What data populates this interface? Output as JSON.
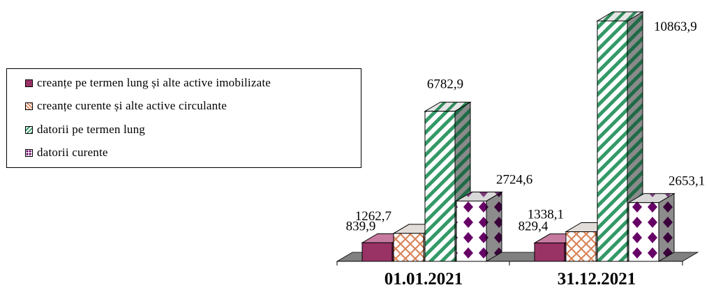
{
  "chart_data": {
    "type": "bar",
    "categories": [
      "01.01.2021",
      "31.12.2021"
    ],
    "series": [
      {
        "name": "creanțe pe termen lung și alte active imobilizate",
        "values": [
          839.9,
          829.4
        ],
        "labels": [
          "839,9",
          "829,4"
        ],
        "color": "#993366",
        "pattern": "solid"
      },
      {
        "name": "creanțe curente și alte active circulante",
        "values": [
          1262.7,
          1338.1
        ],
        "labels": [
          "1262,7",
          "1338,1"
        ],
        "color": "#d9855a",
        "pattern": "crosshatch"
      },
      {
        "name": "datorii pe termen lung",
        "values": [
          6782.9,
          10863.9
        ],
        "labels": [
          "6782,9",
          "10863,9"
        ],
        "color": "#339966",
        "pattern": "diagonal"
      },
      {
        "name": "datorii curente",
        "values": [
          2724.6,
          2653.1
        ],
        "labels": [
          "2724,6",
          "2653,1"
        ],
        "color": "#660066",
        "pattern": "diamond"
      }
    ],
    "legend_position": "left",
    "grid": false,
    "three_d": true,
    "ylim": [
      0,
      10863.9
    ]
  }
}
